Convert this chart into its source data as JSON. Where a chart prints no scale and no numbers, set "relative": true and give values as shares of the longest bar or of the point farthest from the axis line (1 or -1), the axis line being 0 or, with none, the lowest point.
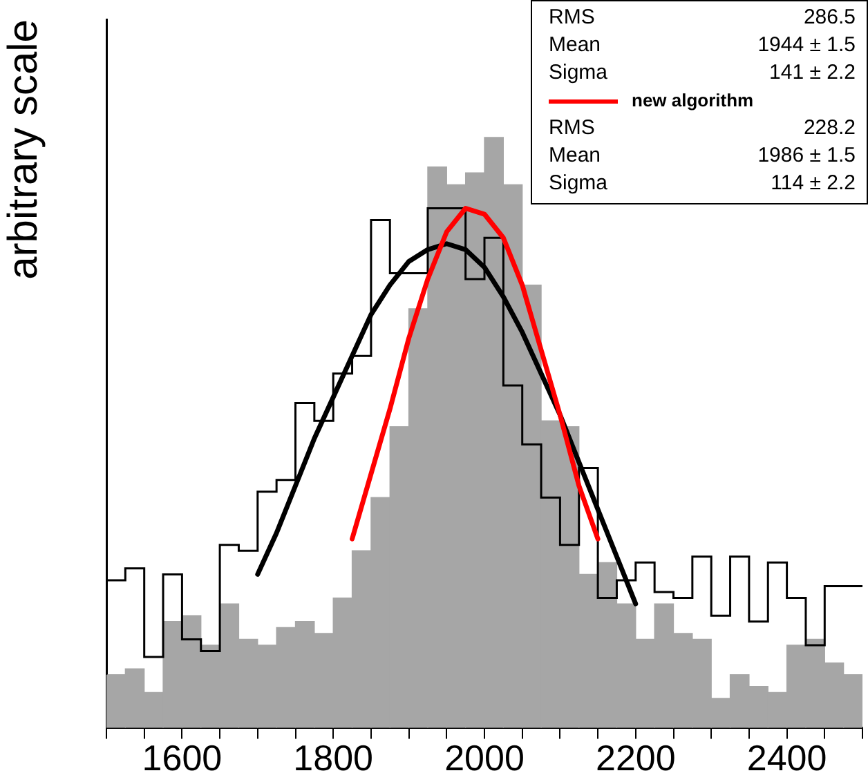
{
  "chart_data": {
    "type": "histogram",
    "relative": true,
    "ylabel": "arbitrary scale",
    "bins": [
      1500,
      1525,
      1550,
      1575,
      1600,
      1625,
      1650,
      1675,
      1700,
      1725,
      1750,
      1775,
      1800,
      1825,
      1850,
      1875,
      1900,
      1925,
      1950,
      1975,
      2000,
      2025,
      2050,
      2075,
      2100,
      2125,
      2150,
      2175,
      2200,
      2225,
      2250,
      2275,
      2300,
      2325,
      2350,
      2375,
      2400,
      2425,
      2450,
      2475,
      2500
    ],
    "xlim": [
      1500,
      2500
    ],
    "xticks": [
      {
        "value": 1500,
        "label": null
      },
      {
        "value": 1550,
        "label": null
      },
      1600,
      {
        "value": 1650,
        "label": null
      },
      {
        "value": 1700,
        "label": null
      },
      {
        "value": 1750,
        "label": null
      },
      1800,
      {
        "value": 1850,
        "label": null
      },
      {
        "value": 1900,
        "label": null
      },
      {
        "value": 1950,
        "label": null
      },
      2000,
      {
        "value": 2050,
        "label": null
      },
      {
        "value": 2100,
        "label": null
      },
      {
        "value": 2150,
        "label": null
      },
      2200,
      {
        "value": 2250,
        "label": null
      },
      {
        "value": 2300,
        "label": null
      },
      {
        "value": 2350,
        "label": null
      },
      2400,
      {
        "value": 2450,
        "label": null
      },
      {
        "value": 2500,
        "label": null
      }
    ],
    "series": [
      {
        "color": "#a6a6a6",
        "values": [
          0.09,
          0.1,
          0.06,
          0.18,
          0.19,
          0.14,
          0.21,
          0.15,
          0.14,
          0.17,
          0.18,
          0.16,
          0.22,
          0.3,
          0.39,
          0.51,
          0.71,
          0.95,
          0.92,
          0.94,
          1,
          0.92,
          0.75,
          0.52,
          0.51,
          0.26,
          0.28,
          0.21,
          0.15,
          0.21,
          0.16,
          0.15,
          0.05,
          0.09,
          0.07,
          0.06,
          0.14,
          0.15,
          0.11,
          0.09
        ]
      },
      {
        "type": "step",
        "color": "#000000",
        "x": [
          1500,
          1525,
          1550,
          1575,
          1600,
          1625,
          1650,
          1675,
          1700,
          1725,
          1750,
          1775,
          1800,
          1825,
          1850,
          1875,
          1900,
          1925,
          1950,
          1975,
          2000,
          2025,
          2050,
          2075,
          2100,
          2125,
          2150,
          2175,
          2200,
          2225,
          2250,
          2275,
          2300,
          2325,
          2350,
          2375,
          2400,
          2425,
          2450,
          2475,
          2500
        ],
        "values": [
          0.09,
          0.25,
          0.27,
          0.12,
          0.26,
          0.15,
          0.13,
          0.31,
          0.3,
          0.4,
          0.42,
          0.55,
          0.52,
          0.6,
          0.63,
          0.86,
          0.77,
          0.77,
          0.88,
          0.88,
          0.76,
          0.83,
          0.58,
          0.48,
          0.39,
          0.31,
          0.44,
          0.22,
          0.25,
          0.28,
          0.23,
          0.22,
          0.29,
          0.19,
          0.29,
          0.18,
          0.28,
          0.22,
          0.14,
          0.24,
          0.24
        ]
      },
      {
        "type": "line",
        "color": "#000000",
        "x": [
          1700,
          1725,
          1750,
          1775,
          1800,
          1825,
          1850,
          1875,
          1900,
          1925,
          1950,
          1975,
          2000,
          2025,
          2050,
          2075,
          2100,
          2125,
          2150,
          2175,
          2200
        ],
        "values": [
          0.26,
          0.33,
          0.41,
          0.49,
          0.56,
          0.63,
          0.7,
          0.75,
          0.79,
          0.81,
          0.82,
          0.81,
          0.78,
          0.73,
          0.67,
          0.6,
          0.53,
          0.45,
          0.37,
          0.29,
          0.21
        ]
      },
      {
        "type": "line",
        "name": "new algorithm",
        "color": "#ff0000",
        "x": [
          1825,
          1850,
          1875,
          1900,
          1925,
          1950,
          1975,
          2000,
          2025,
          2050,
          2075,
          2100,
          2125,
          2150
        ],
        "values": [
          0.32,
          0.43,
          0.54,
          0.66,
          0.76,
          0.84,
          0.88,
          0.87,
          0.83,
          0.75,
          0.64,
          0.53,
          0.41,
          0.32
        ]
      }
    ],
    "marker": "none",
    "legend": "top right",
    "annotations": [
      "RMS 286.5",
      "Mean 1944 ± 1.5",
      "Sigma 141 ± 2.2",
      "RMS 228.2",
      "Mean 1986 ± 1.5",
      "Sigma 114 ± 2.2"
    ]
  }
}
